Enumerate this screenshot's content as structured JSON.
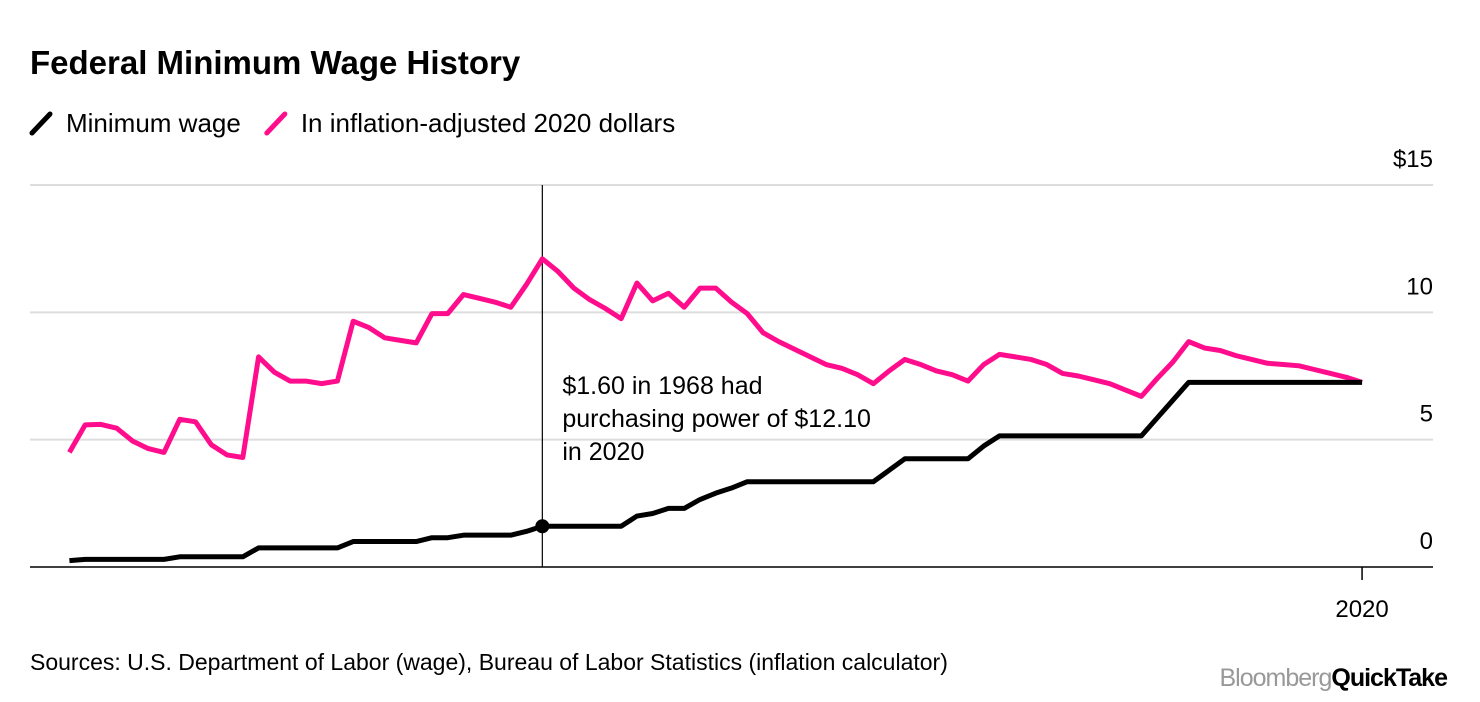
{
  "chart_data": {
    "type": "line",
    "title": "Federal Minimum Wage History",
    "x": [
      1938,
      1939,
      1940,
      1941,
      1942,
      1943,
      1944,
      1945,
      1946,
      1947,
      1948,
      1949,
      1950,
      1951,
      1952,
      1953,
      1954,
      1955,
      1956,
      1957,
      1958,
      1959,
      1960,
      1961,
      1962,
      1963,
      1964,
      1965,
      1966,
      1967,
      1968,
      1969,
      1970,
      1971,
      1972,
      1973,
      1974,
      1975,
      1976,
      1977,
      1978,
      1979,
      1980,
      1981,
      1982,
      1983,
      1984,
      1985,
      1986,
      1987,
      1988,
      1989,
      1990,
      1991,
      1992,
      1993,
      1994,
      1995,
      1996,
      1997,
      1998,
      1999,
      2000,
      2001,
      2002,
      2003,
      2004,
      2005,
      2006,
      2007,
      2008,
      2009,
      2010,
      2011,
      2012,
      2013,
      2014,
      2015,
      2016,
      2017,
      2018,
      2019,
      2020
    ],
    "series": [
      {
        "name": "Minimum wage",
        "color": "#000000",
        "values": [
          0.25,
          0.3,
          0.3,
          0.3,
          0.3,
          0.3,
          0.3,
          0.4,
          0.4,
          0.4,
          0.4,
          0.4,
          0.75,
          0.75,
          0.75,
          0.75,
          0.75,
          0.75,
          1.0,
          1.0,
          1.0,
          1.0,
          1.0,
          1.15,
          1.15,
          1.25,
          1.25,
          1.25,
          1.25,
          1.4,
          1.6,
          1.6,
          1.6,
          1.6,
          1.6,
          1.6,
          2.0,
          2.1,
          2.3,
          2.3,
          2.65,
          2.9,
          3.1,
          3.35,
          3.35,
          3.35,
          3.35,
          3.35,
          3.35,
          3.35,
          3.35,
          3.35,
          3.8,
          4.25,
          4.25,
          4.25,
          4.25,
          4.25,
          4.75,
          5.15,
          5.15,
          5.15,
          5.15,
          5.15,
          5.15,
          5.15,
          5.15,
          5.15,
          5.15,
          5.85,
          6.55,
          7.25,
          7.25,
          7.25,
          7.25,
          7.25,
          7.25,
          7.25,
          7.25,
          7.25,
          7.25,
          7.25,
          7.25
        ]
      },
      {
        "name": "In inflation-adjusted 2020 dollars",
        "color": "#ff0d8c",
        "values": [
          4.5,
          5.58,
          5.6,
          5.45,
          4.95,
          4.65,
          4.5,
          5.8,
          5.7,
          4.8,
          4.4,
          4.3,
          8.25,
          7.65,
          7.3,
          7.3,
          7.2,
          7.3,
          9.65,
          9.4,
          9.0,
          8.9,
          8.8,
          9.95,
          9.95,
          10.7,
          10.55,
          10.4,
          10.2,
          11.1,
          12.1,
          11.6,
          10.95,
          10.5,
          10.15,
          9.75,
          11.15,
          10.45,
          10.75,
          10.2,
          10.95,
          10.95,
          10.4,
          9.95,
          9.2,
          8.85,
          8.55,
          8.25,
          7.95,
          7.8,
          7.55,
          7.2,
          7.7,
          8.15,
          7.95,
          7.7,
          7.55,
          7.3,
          7.95,
          8.35,
          8.25,
          8.15,
          7.95,
          7.6,
          7.5,
          7.35,
          7.2,
          6.95,
          6.7,
          7.4,
          8.05,
          8.85,
          8.6,
          8.5,
          8.3,
          8.15,
          8.0,
          7.95,
          7.9,
          7.75,
          7.6,
          7.45,
          7.25
        ]
      }
    ],
    "xlim": [
      1935.5,
      2024.5
    ],
    "xticks": [
      2020
    ],
    "ylim": [
      0,
      15
    ],
    "yticks": [
      {
        "value": 15,
        "label": "$15"
      },
      10,
      5,
      0
    ],
    "grid": true,
    "annotation": {
      "x": 1968,
      "text": [
        "$1.60 in 1968 had",
        "purchasing power of $12.10",
        "in 2020"
      ]
    },
    "source": "Sources: U.S. Department of Labor (wage), Bureau of Labor Statistics (inflation calculator)",
    "logo": [
      "Bloomberg",
      "QuickTake"
    ]
  }
}
